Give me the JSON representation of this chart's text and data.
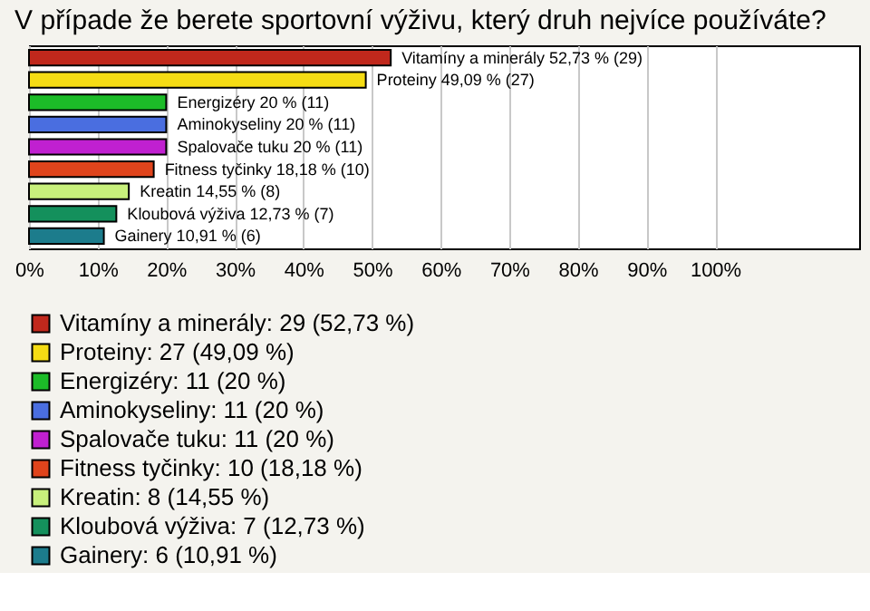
{
  "chart_data": {
    "type": "bar",
    "orientation": "horizontal",
    "title": "V případe že berete sportovní výživu, který druh nejvíce používáte?",
    "categories": [
      null,
      null,
      null,
      null,
      null,
      null,
      null,
      null,
      null
    ],
    "series": [
      {
        "name": "Vitamíny a minerály: 29 (52,73 %)",
        "color": "#c0281c",
        "values": [
          52.73,
          null,
          null,
          null,
          null,
          null,
          null,
          null,
          null
        ]
      },
      {
        "name": "Proteiny: 27 (49,09 %)",
        "color": "#f5dc14",
        "values": [
          null,
          49.09,
          null,
          null,
          null,
          null,
          null,
          null,
          null
        ]
      },
      {
        "name": "Energizéry: 11 (20 %)",
        "color": "#1cbc28",
        "values": [
          null,
          null,
          20,
          null,
          null,
          null,
          null,
          null,
          null
        ]
      },
      {
        "name": "Aminokyseliny: 11 (20 %)",
        "color": "#4a6ee0",
        "values": [
          null,
          null,
          null,
          20,
          null,
          null,
          null,
          null,
          null
        ]
      },
      {
        "name": "Spalovače tuku: 11 (20 %)",
        "color": "#c020d0",
        "values": [
          null,
          null,
          null,
          null,
          20,
          null,
          null,
          null,
          null
        ]
      },
      {
        "name": "Fitness tyčinky: 10 (18,18 %)",
        "color": "#e0441c",
        "values": [
          null,
          null,
          null,
          null,
          null,
          18.18,
          null,
          null,
          null
        ]
      },
      {
        "name": "Kreatin: 8 (14,55 %)",
        "color": "#c8f07c",
        "values": [
          null,
          null,
          null,
          null,
          null,
          null,
          14.55,
          null,
          null
        ]
      },
      {
        "name": "Kloubová výživa: 7 (12,73 %)",
        "color": "#14905c",
        "values": [
          null,
          null,
          null,
          null,
          null,
          null,
          null,
          12.73,
          null
        ]
      },
      {
        "name": "Gainery: 6 (10,91 %)",
        "color": "#1c7c8c",
        "values": [
          null,
          null,
          null,
          null,
          null,
          null,
          null,
          null,
          10.91
        ]
      }
    ],
    "value_labels": [
      "Vitamíny a minerály 52,73 % (29)",
      "Proteiny 49,09 % (27)",
      "Energizéry 20 % (11)",
      "Aminokyseliny 20 % (11)",
      "Spalovače tuku 20 % (11)",
      "Fitness tyčinky 18,18 % (10)",
      "Kreatin 14,55 % (8)",
      "Kloubová výživa 12,73 % (7)",
      "Gainery 10,91 % (6)"
    ],
    "xlim": [
      0,
      121
    ],
    "xticks": [
      {
        "value": 0,
        "label": "0%"
      },
      {
        "value": 10,
        "label": "10%"
      },
      {
        "value": 20,
        "label": "20%"
      },
      {
        "value": 30,
        "label": "30%"
      },
      {
        "value": 40,
        "label": "40%"
      },
      {
        "value": 50,
        "label": "50%"
      },
      {
        "value": 60,
        "label": "60%"
      },
      {
        "value": 70,
        "label": "70%"
      },
      {
        "value": 80,
        "label": "80%"
      },
      {
        "value": 90,
        "label": "90%"
      },
      {
        "value": 100,
        "label": "100%"
      }
    ],
    "grid": "x",
    "legend": "bottom"
  }
}
